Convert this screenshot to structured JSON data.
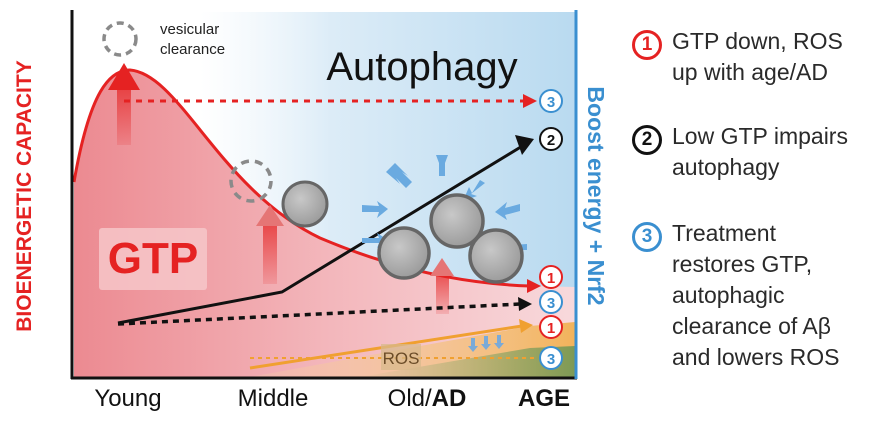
{
  "diagram": {
    "y_axis_left_label": "BIOENERGETIC CAPACITY",
    "y_axis_right_label": "Boost energy + Nrf2",
    "x_axis_ticks": [
      "Young",
      "Middle",
      "Old/",
      "AD"
    ],
    "x_axis_title": "AGE",
    "title": "Autophagy",
    "gtp_label": "GTP",
    "ros_label": "ROS",
    "vesicular_clearance": [
      "vesicular",
      "clearance"
    ],
    "markers": {
      "one": "1",
      "two": "2",
      "three": "3"
    },
    "colors": {
      "red": "#e52222",
      "blue": "#3a8fd0",
      "black": "#111111",
      "orange": "#f0a030",
      "green": "#7d9a55"
    }
  },
  "legend": [
    {
      "number": "1",
      "color": "red",
      "lines": [
        "GTP down, ROS",
        "up with age/AD"
      ]
    },
    {
      "number": "2",
      "color": "black",
      "lines": [
        "Low GTP impairs",
        "autophagy"
      ]
    },
    {
      "number": "3",
      "color": "blue",
      "lines": [
        "Treatment",
        "restores GTP,",
        "autophagic",
        "clearance of Aβ",
        "and lowers ROS"
      ]
    }
  ]
}
